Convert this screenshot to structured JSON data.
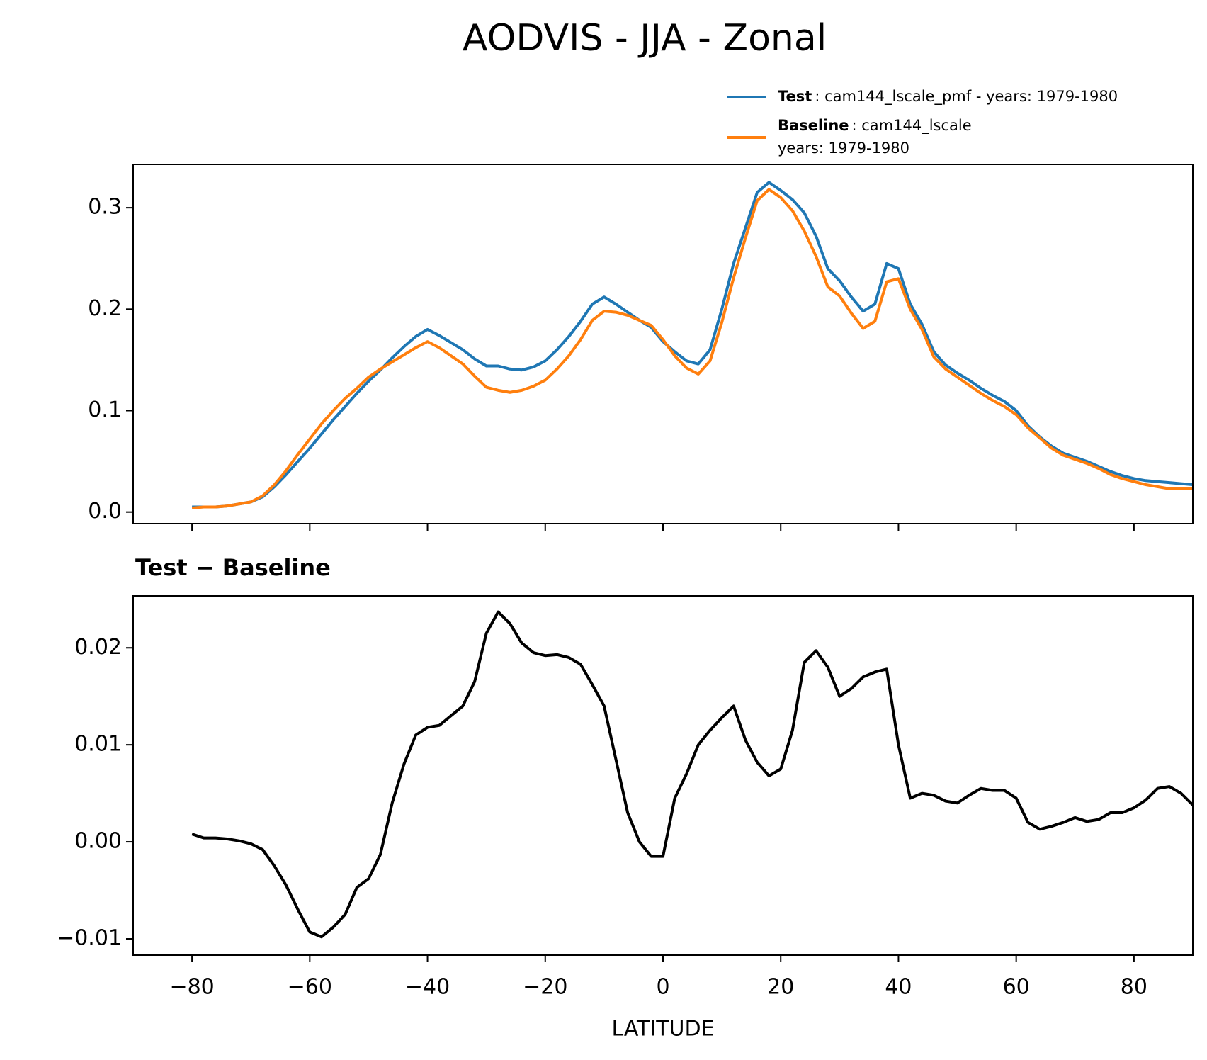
{
  "chart_data": [
    {
      "type": "line",
      "title": "AODVIS - JJA - Zonal",
      "x": [
        -80,
        -78,
        -76,
        -74,
        -72,
        -70,
        -68,
        -66,
        -64,
        -62,
        -60,
        -58,
        -56,
        -54,
        -52,
        -50,
        -48,
        -46,
        -44,
        -42,
        -40,
        -38,
        -36,
        -34,
        -32,
        -30,
        -28,
        -26,
        -24,
        -22,
        -20,
        -18,
        -16,
        -14,
        -12,
        -10,
        -8,
        -6,
        -4,
        -2,
        0,
        2,
        4,
        6,
        8,
        10,
        12,
        14,
        16,
        18,
        20,
        22,
        24,
        26,
        28,
        30,
        32,
        34,
        36,
        38,
        40,
        42,
        44,
        46,
        48,
        50,
        52,
        54,
        56,
        58,
        60,
        62,
        64,
        66,
        68,
        70,
        72,
        74,
        76,
        78,
        80,
        82,
        84,
        86,
        88,
        90
      ],
      "series": [
        {
          "name": "Test",
          "description": [
            ": cam144_lscale_pmf - years: 1979-1980"
          ],
          "color": "#1f77b4",
          "values": [
            0.005,
            0.005,
            0.005,
            0.006,
            0.008,
            0.01,
            0.015,
            0.025,
            0.037,
            0.05,
            0.063,
            0.077,
            0.091,
            0.104,
            0.117,
            0.129,
            0.14,
            0.152,
            0.163,
            0.173,
            0.18,
            0.174,
            0.167,
            0.16,
            0.151,
            0.144,
            0.144,
            0.141,
            0.14,
            0.143,
            0.149,
            0.16,
            0.173,
            0.188,
            0.205,
            0.212,
            0.205,
            0.197,
            0.189,
            0.182,
            0.168,
            0.158,
            0.149,
            0.146,
            0.16,
            0.2,
            0.245,
            0.28,
            0.315,
            0.325,
            0.317,
            0.308,
            0.295,
            0.272,
            0.24,
            0.228,
            0.212,
            0.198,
            0.205,
            0.245,
            0.24,
            0.205,
            0.185,
            0.158,
            0.145,
            0.137,
            0.13,
            0.122,
            0.115,
            0.109,
            0.1,
            0.085,
            0.074,
            0.065,
            0.058,
            0.054,
            0.05,
            0.045,
            0.04,
            0.036,
            0.033,
            0.031,
            0.03,
            0.029,
            0.028,
            0.027
          ]
        },
        {
          "name": "Baseline",
          "description": [
            ": cam144_lscale",
            "years: 1979-1980"
          ],
          "color": "#ff7f0e",
          "values": [
            0.004,
            0.005,
            0.005,
            0.006,
            0.008,
            0.01,
            0.016,
            0.027,
            0.041,
            0.057,
            0.072,
            0.087,
            0.1,
            0.112,
            0.122,
            0.133,
            0.141,
            0.148,
            0.155,
            0.162,
            0.168,
            0.162,
            0.154,
            0.146,
            0.134,
            0.123,
            0.12,
            0.118,
            0.12,
            0.124,
            0.13,
            0.141,
            0.154,
            0.17,
            0.189,
            0.198,
            0.197,
            0.194,
            0.189,
            0.184,
            0.17,
            0.154,
            0.142,
            0.136,
            0.149,
            0.187,
            0.231,
            0.27,
            0.307,
            0.318,
            0.31,
            0.297,
            0.277,
            0.252,
            0.222,
            0.213,
            0.196,
            0.181,
            0.188,
            0.227,
            0.23,
            0.2,
            0.18,
            0.153,
            0.141,
            0.133,
            0.125,
            0.117,
            0.11,
            0.104,
            0.096,
            0.083,
            0.073,
            0.063,
            0.056,
            0.052,
            0.048,
            0.043,
            0.037,
            0.033,
            0.03,
            0.027,
            0.025,
            0.023,
            0.023,
            0.023
          ]
        }
      ],
      "xlim": [
        -90,
        90
      ],
      "xticks": [
        -80,
        -60,
        -40,
        -20,
        0,
        20,
        40,
        60,
        80
      ],
      "ylim": [
        -0.0114,
        0.3427
      ],
      "yticks": [
        {
          "value": 0,
          "label": "0.0"
        },
        0.1,
        0.2,
        0.3
      ]
    },
    {
      "type": "line",
      "title": "Test − Baseline",
      "xlabel": "LATITUDE",
      "x": [
        -80,
        -78,
        -76,
        -74,
        -72,
        -70,
        -68,
        -66,
        -64,
        -62,
        -60,
        -58,
        -56,
        -54,
        -52,
        -50,
        -48,
        -46,
        -44,
        -42,
        -40,
        -38,
        -36,
        -34,
        -32,
        -30,
        -28,
        -26,
        -24,
        -22,
        -20,
        -18,
        -16,
        -14,
        -12,
        -10,
        -8,
        -6,
        -4,
        -2,
        0,
        2,
        4,
        6,
        8,
        10,
        12,
        14,
        16,
        18,
        20,
        22,
        24,
        26,
        28,
        30,
        32,
        34,
        36,
        38,
        40,
        42,
        44,
        46,
        48,
        50,
        52,
        54,
        56,
        58,
        60,
        62,
        64,
        66,
        68,
        70,
        72,
        74,
        76,
        78,
        80,
        82,
        84,
        86,
        88,
        90
      ],
      "series": [
        {
          "color": "#000000",
          "values": [
            0.0008,
            0.0004,
            0.0004,
            0.0003,
            0.0001,
            -0.0002,
            -0.0008,
            -0.0025,
            -0.0045,
            -0.007,
            -0.0093,
            -0.0098,
            -0.0088,
            -0.0075,
            -0.0047,
            -0.0038,
            -0.0013,
            0.004,
            0.008,
            0.011,
            0.0118,
            0.012,
            0.013,
            0.014,
            0.0165,
            0.0215,
            0.0237,
            0.0225,
            0.0205,
            0.0195,
            0.0192,
            0.0193,
            0.019,
            0.0183,
            0.0162,
            0.014,
            0.0085,
            0.003,
            0.0,
            -0.0015,
            -0.0015,
            0.0045,
            0.007,
            0.01,
            0.0115,
            0.0128,
            0.014,
            0.0105,
            0.0082,
            0.0068,
            0.0075,
            0.0115,
            0.0185,
            0.0197,
            0.018,
            0.015,
            0.0158,
            0.017,
            0.0175,
            0.0178,
            0.01,
            0.0045,
            0.005,
            0.0048,
            0.0042,
            0.004,
            0.0048,
            0.0055,
            0.0053,
            0.0053,
            0.0045,
            0.002,
            0.0013,
            0.0016,
            0.002,
            0.0025,
            0.0021,
            0.0023,
            0.003,
            0.003,
            0.0035,
            0.0043,
            0.0055,
            0.0057,
            0.005,
            0.0038
          ]
        }
      ],
      "xlim": [
        -90,
        90
      ],
      "xticks": [
        {
          "value": -80,
          "label": "−80"
        },
        {
          "value": -60,
          "label": "−60"
        },
        {
          "value": -40,
          "label": "−40"
        },
        {
          "value": -20,
          "label": "−20"
        },
        0,
        20,
        40,
        60,
        80
      ],
      "ylim": [
        -0.01168,
        0.02535
      ],
      "yticks": [
        {
          "value": -0.01,
          "label": "−0.01"
        },
        {
          "value": 0,
          "label": "0.00"
        },
        0.01,
        0.02
      ]
    }
  ]
}
